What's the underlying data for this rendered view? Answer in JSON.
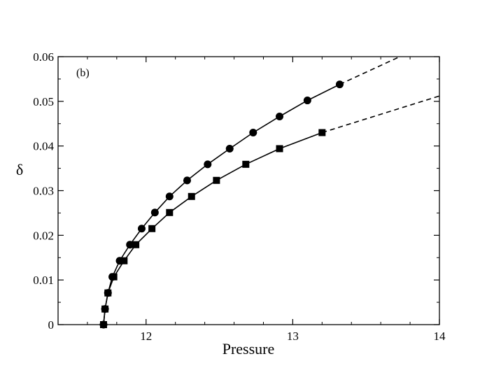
{
  "chart_data": {
    "type": "line",
    "panel_label": "(b)",
    "xlabel": "Pressure",
    "ylabel": "δ",
    "xlim": [
      11.4,
      14
    ],
    "ylim": [
      0,
      0.06
    ],
    "xticks": [
      {
        "value": 12,
        "label": "12"
      },
      {
        "value": 13,
        "label": "13"
      },
      {
        "value": 14,
        "label": "14"
      }
    ],
    "yticks": [
      {
        "value": 0,
        "label": "0"
      },
      {
        "value": 0.01,
        "label": "0.01"
      },
      {
        "value": 0.02,
        "label": "0.02"
      },
      {
        "value": 0.03,
        "label": "0.03"
      },
      {
        "value": 0.04,
        "label": "0.04"
      },
      {
        "value": 0.05,
        "label": "0.05"
      },
      {
        "value": 0.06,
        "label": "0.06"
      }
    ],
    "grid": false,
    "series": [
      {
        "marker": "circle",
        "x": [
          11.71,
          11.72,
          11.74,
          11.77,
          11.82,
          11.89,
          11.97,
          12.06,
          12.16,
          12.28,
          12.42,
          12.57,
          12.73,
          12.91,
          13.1,
          13.32
        ],
        "y": [
          0.0,
          0.0035,
          0.0071,
          0.0107,
          0.0143,
          0.0179,
          0.0215,
          0.0251,
          0.0287,
          0.0323,
          0.0359,
          0.0394,
          0.043,
          0.0466,
          0.0502,
          0.0538
        ],
        "extrapolation": {
          "style": "dashed",
          "x": [
            13.32,
            13.73
          ],
          "y": [
            0.0538,
            0.06
          ]
        }
      },
      {
        "marker": "square",
        "x": [
          11.71,
          11.72,
          11.74,
          11.78,
          11.85,
          11.93,
          12.04,
          12.16,
          12.31,
          12.48,
          12.68,
          12.91,
          13.2
        ],
        "y": [
          0.0,
          0.0035,
          0.0071,
          0.0107,
          0.0143,
          0.0179,
          0.0215,
          0.0251,
          0.0287,
          0.0323,
          0.0359,
          0.0394,
          0.043
        ],
        "extrapolation": {
          "style": "dashed",
          "x": [
            13.2,
            14.0
          ],
          "y": [
            0.043,
            0.0512
          ]
        }
      }
    ]
  }
}
